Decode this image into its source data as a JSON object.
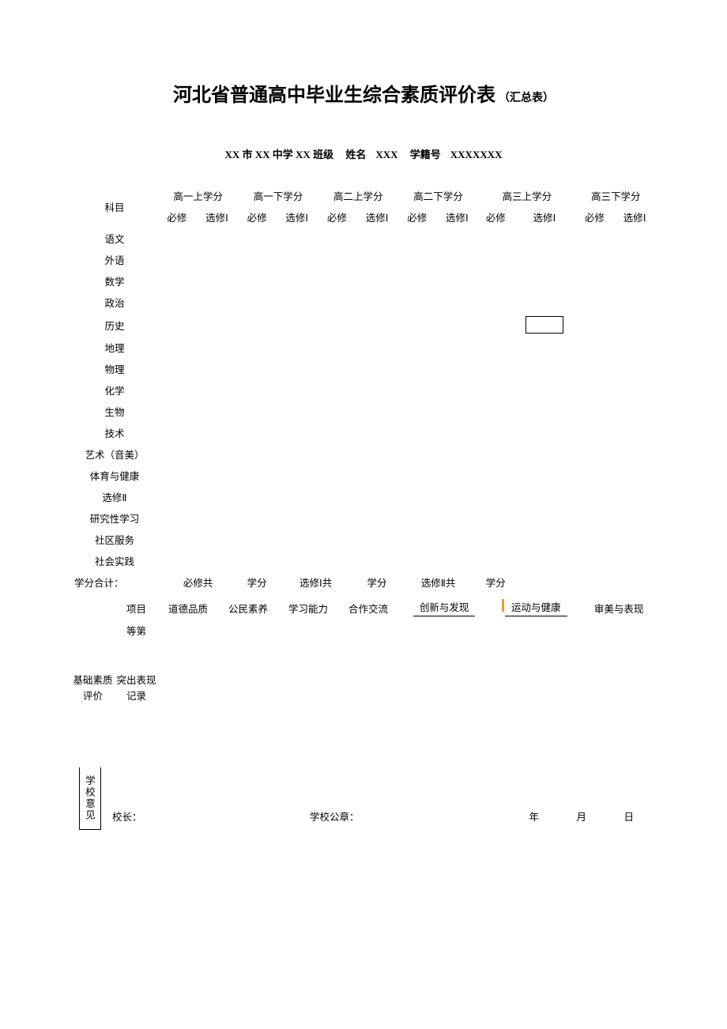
{
  "title": {
    "main": "河北省普通高中毕业生综合素质评价表",
    "suffix": "（汇总表）"
  },
  "info": {
    "school": "XX 市 XX 中学 XX 班级",
    "name_label": "姓名",
    "name": "XXX",
    "id_label": "学籍号",
    "id": "XXXXXXX"
  },
  "credits_table": {
    "subject_header": "科目",
    "semesters": [
      "高一上学分",
      "高一下学分",
      "高二上学分",
      "高二下学分",
      "高三上学分",
      "高三下学分"
    ],
    "sub_headers": [
      "必修",
      "选修Ⅰ"
    ],
    "subjects": [
      "语文",
      "外语",
      "数学",
      "政治",
      "历史",
      "地理",
      "物理",
      "化学",
      "生物",
      "技术",
      "艺术（音美）",
      "体育与健康",
      "选修Ⅱ",
      "研究性学习",
      "社区服务",
      "社会实践"
    ],
    "box_marker": {
      "row": 4,
      "col": 9
    },
    "totals": {
      "label": "学分合计：",
      "req": "必修共",
      "unit": "学分",
      "sel1": "选修Ⅰ共",
      "sel2": "选修Ⅱ共"
    }
  },
  "quality": {
    "row_project": "项目",
    "row_grade": "等第",
    "left_label": "基础素质评价",
    "row_record": "突出表现记录",
    "items": [
      "道德品质",
      "公民素养",
      "学习能力",
      "合作交流",
      "创新与发现",
      "运动与健康",
      "审美与表现"
    ]
  },
  "footer": {
    "vert": "学校意见",
    "principal": "校长：",
    "seal": "学校公章：",
    "year": "年",
    "month": "月",
    "day": "日"
  }
}
